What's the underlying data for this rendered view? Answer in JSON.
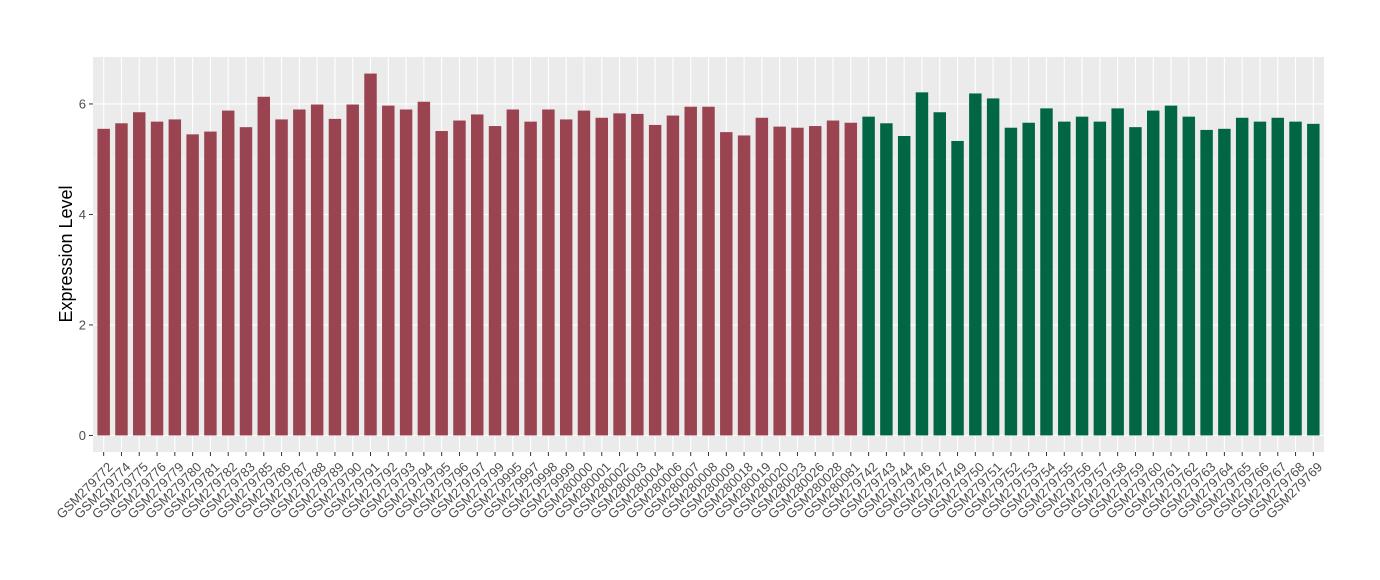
{
  "chart_data": {
    "type": "bar",
    "title": "",
    "xlabel": "",
    "ylabel": "Expression Level",
    "ylim": [
      -0.3,
      6.85
    ],
    "yticks": [
      0,
      2,
      4,
      6
    ],
    "grid": true,
    "legend": "none",
    "colors": {
      "group1": "#994450",
      "group2": "#006644",
      "panel_bg": "#ebebeb",
      "grid_major": "#ffffff"
    },
    "categories": [
      "GSM279772",
      "GSM279774",
      "GSM279775",
      "GSM279776",
      "GSM279779",
      "GSM279780",
      "GSM279781",
      "GSM279782",
      "GSM279783",
      "GSM279785",
      "GSM279786",
      "GSM279787",
      "GSM279788",
      "GSM279789",
      "GSM279790",
      "GSM279791",
      "GSM279792",
      "GSM279793",
      "GSM279794",
      "GSM279795",
      "GSM279796",
      "GSM279797",
      "GSM279799",
      "GSM279995",
      "GSM279997",
      "GSM279998",
      "GSM279999",
      "GSM280000",
      "GSM280001",
      "GSM280002",
      "GSM280003",
      "GSM280004",
      "GSM280006",
      "GSM280007",
      "GSM280008",
      "GSM280009",
      "GSM280018",
      "GSM280019",
      "GSM280020",
      "GSM280023",
      "GSM280026",
      "GSM280028",
      "GSM280081",
      "GSM279742",
      "GSM279743",
      "GSM279744",
      "GSM279746",
      "GSM279747",
      "GSM279749",
      "GSM279750",
      "GSM279751",
      "GSM279752",
      "GSM279753",
      "GSM279754",
      "GSM279755",
      "GSM279756",
      "GSM279757",
      "GSM279758",
      "GSM279759",
      "GSM279760",
      "GSM279761",
      "GSM279762",
      "GSM279763",
      "GSM279764",
      "GSM279765",
      "GSM279766",
      "GSM279767",
      "GSM279768",
      "GSM279769"
    ],
    "values": [
      5.55,
      5.65,
      5.85,
      5.68,
      5.72,
      5.45,
      5.5,
      5.88,
      5.58,
      6.13,
      5.72,
      5.9,
      5.99,
      5.73,
      5.99,
      6.55,
      5.97,
      5.9,
      6.04,
      5.51,
      5.7,
      5.81,
      5.6,
      5.9,
      5.68,
      5.9,
      5.72,
      5.88,
      5.75,
      5.83,
      5.82,
      5.62,
      5.79,
      5.95,
      5.95,
      5.49,
      5.43,
      5.75,
      5.59,
      5.57,
      5.6,
      5.7,
      5.66,
      5.77,
      5.65,
      5.42,
      6.21,
      5.85,
      5.33,
      6.19,
      6.1,
      5.57,
      5.66,
      5.92,
      5.68,
      5.77,
      5.68,
      5.92,
      5.58,
      5.88,
      5.97,
      5.77,
      5.53,
      5.55,
      5.75,
      5.68,
      5.75,
      5.68,
      5.64
    ],
    "groups": [
      1,
      1,
      1,
      1,
      1,
      1,
      1,
      1,
      1,
      1,
      1,
      1,
      1,
      1,
      1,
      1,
      1,
      1,
      1,
      1,
      1,
      1,
      1,
      1,
      1,
      1,
      1,
      1,
      1,
      1,
      1,
      1,
      1,
      1,
      1,
      1,
      1,
      1,
      1,
      1,
      1,
      1,
      1,
      2,
      2,
      2,
      2,
      2,
      2,
      2,
      2,
      2,
      2,
      2,
      2,
      2,
      2,
      2,
      2,
      2,
      2,
      2,
      2,
      2,
      2,
      2,
      2,
      2,
      2
    ]
  }
}
